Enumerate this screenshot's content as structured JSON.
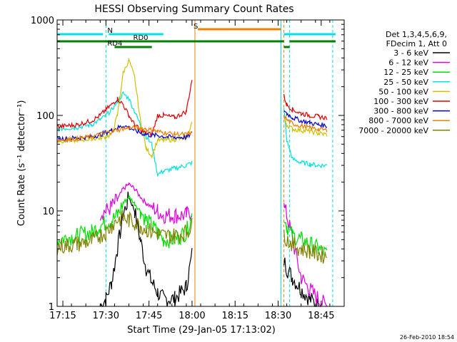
{
  "chart_data": {
    "type": "line",
    "title": "HESSI Observing Summary Count Rates",
    "xlabel": "Start Time (29-Jan-05 17:13:02)",
    "ylabel": "Count Rate (s⁻¹ detector⁻¹)",
    "yscale": "log",
    "ylim": [
      1,
      1000
    ],
    "xlim": [
      "17:13",
      "18:53"
    ],
    "x_ticks": [
      "17:15",
      "17:30",
      "17:45",
      "18:00",
      "18:15",
      "18:30",
      "18:45"
    ],
    "y_ticks": [
      "1",
      "10",
      "100",
      "1000"
    ],
    "footer_date": "26-Feb-2010 18:54",
    "legend": {
      "placement": "right",
      "header": [
        "Det 1,3,4,5,6,9,",
        "FDecim 1, Att 0"
      ],
      "entries": [
        {
          "label": "3 - 6 keV",
          "color": "#000000"
        },
        {
          "label": "6 - 12 keV",
          "color": "#e000e0"
        },
        {
          "label": "12 - 25 keV",
          "color": "#00e000"
        },
        {
          "label": "25 - 50 keV",
          "color": "#00e0e0"
        },
        {
          "label": "50 - 100 keV",
          "color": "#d0c000"
        },
        {
          "label": "100 - 300 keV",
          "color": "#e00000"
        },
        {
          "label": "300 - 800 keV",
          "color": "#0000d0"
        },
        {
          "label": "800 - 7000 keV",
          "color": "#f08000"
        },
        {
          "label": "7000 - 20000 keV",
          "color": "#808000"
        }
      ]
    },
    "flags": [
      {
        "label": "N",
        "color": "#00e0e0",
        "segments": [
          [
            "17:13",
            "17:29"
          ],
          [
            "17:31",
            "17:50"
          ],
          [
            "18:32",
            "18:50"
          ]
        ]
      },
      {
        "label": "S",
        "color": "#f08000",
        "segments": [
          [
            "18:02",
            "18:31"
          ]
        ]
      },
      {
        "label": "RD0",
        "color": "#008000",
        "segments": [
          [
            "17:13",
            "18:32"
          ],
          [
            "18:34",
            "18:50"
          ]
        ]
      },
      {
        "label": "RD4",
        "color": "#008000",
        "segments": [
          [
            "17:33",
            "17:46"
          ],
          [
            "18:32",
            "18:34"
          ]
        ]
      }
    ],
    "markers": [
      {
        "time": "17:13",
        "color": "#00e0e0",
        "style": "solid"
      },
      {
        "time": "17:30",
        "color": "#00e0e0",
        "style": "dashed"
      },
      {
        "time": "18:01",
        "color": "#f08000",
        "style": "solid"
      },
      {
        "time": "18:31",
        "color": "#00e0e0",
        "style": "solid"
      },
      {
        "time": "18:32",
        "color": "#f08000",
        "style": "dashed"
      },
      {
        "time": "18:34",
        "color": "#00e0e0",
        "style": "dashed"
      },
      {
        "time": "18:49",
        "color": "#00e0e0",
        "style": "dashed"
      }
    ],
    "series": [
      {
        "name": "3 - 6 keV",
        "x": [
          "17:13",
          "17:20",
          "17:25",
          "17:28",
          "17:30",
          "17:32",
          "17:34",
          "17:36",
          "17:38",
          "17:40",
          "17:42",
          "17:44",
          "17:46",
          "17:48",
          "17:50",
          "17:54",
          "17:58",
          "18:00",
          "18:01",
          "18:32",
          "18:33",
          "18:35",
          "18:38",
          "18:41",
          "18:44",
          "18:47",
          "18:49"
        ],
        "y": [
          null,
          null,
          null,
          1,
          1.2,
          1.8,
          4,
          9,
          14,
          10,
          5,
          2.5,
          1.8,
          1.4,
          1.2,
          1.2,
          1.6,
          3.5,
          null,
          3,
          2.5,
          2,
          1.5,
          1.2,
          1,
          null,
          null
        ]
      },
      {
        "name": "6 - 12 keV",
        "x": [
          "17:13",
          "17:20",
          "17:25",
          "17:28",
          "17:30",
          "17:32",
          "17:34",
          "17:36",
          "17:38",
          "17:40",
          "17:42",
          "17:44",
          "17:46",
          "17:48",
          "17:50",
          "17:54",
          "17:58",
          "18:00",
          "18:01",
          "18:32",
          "18:33",
          "18:35",
          "18:38",
          "18:41",
          "18:44",
          "18:47",
          "18:49"
        ],
        "y": [
          null,
          null,
          null,
          9.5,
          10,
          11,
          13,
          17,
          19,
          17,
          14,
          12,
          11,
          10,
          9,
          9,
          9,
          10,
          null,
          11,
          9,
          5,
          2,
          1.5,
          1.2,
          1,
          null
        ]
      },
      {
        "name": "12 - 25 keV",
        "x": [
          "17:13",
          "17:20",
          "17:25",
          "17:28",
          "17:30",
          "17:32",
          "17:34",
          "17:36",
          "17:38",
          "17:40",
          "17:42",
          "17:44",
          "17:46",
          "17:48",
          "17:50",
          "17:54",
          "17:58",
          "18:00",
          "18:01",
          "18:32",
          "18:33",
          "18:35",
          "18:38",
          "18:41",
          "18:44",
          "18:47",
          "18:49"
        ],
        "y": [
          5,
          5.5,
          6,
          7,
          7.5,
          8,
          9,
          12,
          14,
          12,
          10,
          8,
          7,
          6,
          5,
          5,
          6,
          9,
          null,
          9,
          7,
          5.5,
          5,
          4.5,
          4,
          3.5,
          null
        ]
      },
      {
        "name": "25 - 50 keV",
        "x": [
          "17:13",
          "17:20",
          "17:25",
          "17:28",
          "17:30",
          "17:32",
          "17:34",
          "17:36",
          "17:38",
          "17:40",
          "17:42",
          "17:44",
          "17:46",
          "17:48",
          "17:50",
          "17:54",
          "17:58",
          "18:00",
          "18:01",
          "18:32",
          "18:33",
          "18:35",
          "18:38",
          "18:41",
          "18:44",
          "18:47",
          "18:49"
        ],
        "y": [
          72,
          75,
          80,
          90,
          100,
          115,
          140,
          170,
          150,
          110,
          80,
          60,
          50,
          24,
          26,
          28,
          30,
          32,
          null,
          120,
          55,
          35,
          32,
          31,
          30,
          30,
          null
        ]
      },
      {
        "name": "50 - 100 keV",
        "x": [
          "17:13",
          "17:20",
          "17:25",
          "17:28",
          "17:30",
          "17:32",
          "17:34",
          "17:36",
          "17:38",
          "17:40",
          "17:42",
          "17:44",
          "17:46",
          "17:48",
          "17:50",
          "17:54",
          "17:58",
          "18:00",
          "18:01",
          "18:32",
          "18:33",
          "18:35",
          "18:38",
          "18:41",
          "18:44",
          "18:47",
          "18:49"
        ],
        "y": [
          54,
          55,
          57,
          58,
          60,
          63,
          100,
          280,
          380,
          250,
          90,
          45,
          38,
          55,
          55,
          56,
          58,
          85,
          null,
          95,
          80,
          72,
          70,
          68,
          65,
          63,
          null
        ]
      },
      {
        "name": "100 - 300 keV",
        "x": [
          "17:13",
          "17:20",
          "17:25",
          "17:28",
          "17:30",
          "17:32",
          "17:34",
          "17:36",
          "17:38",
          "17:40",
          "17:42",
          "17:44",
          "17:46",
          "17:48",
          "17:50",
          "17:54",
          "17:58",
          "18:00",
          "18:01",
          "18:32",
          "18:33",
          "18:35",
          "18:38",
          "18:41",
          "18:44",
          "18:47",
          "18:49"
        ],
        "y": [
          76,
          80,
          88,
          100,
          115,
          130,
          150,
          130,
          100,
          80,
          70,
          65,
          63,
          100,
          100,
          95,
          110,
          240,
          null,
          160,
          130,
          115,
          105,
          100,
          97,
          94,
          null
        ]
      },
      {
        "name": "300 - 800 keV",
        "x": [
          "17:13",
          "17:20",
          "17:25",
          "17:28",
          "17:30",
          "17:32",
          "17:34",
          "17:36",
          "17:38",
          "17:40",
          "17:42",
          "17:44",
          "17:46",
          "17:48",
          "17:50",
          "17:54",
          "17:58",
          "18:00",
          "18:01",
          "18:32",
          "18:33",
          "18:35",
          "18:38",
          "18:41",
          "18:44",
          "18:47",
          "18:49"
        ],
        "y": [
          57,
          58,
          60,
          63,
          66,
          70,
          74,
          78,
          75,
          70,
          66,
          63,
          62,
          62,
          60,
          59,
          59,
          65,
          null,
          115,
          105,
          95,
          88,
          84,
          80,
          78,
          null
        ]
      },
      {
        "name": "800 - 7000 keV",
        "x": [
          "17:13",
          "17:20",
          "17:25",
          "17:28",
          "17:30",
          "17:32",
          "17:34",
          "17:36",
          "17:38",
          "17:40",
          "17:42",
          "17:44",
          "17:46",
          "17:48",
          "17:50",
          "17:54",
          "17:58",
          "18:00",
          "18:01",
          "18:32",
          "18:33",
          "18:35",
          "18:38",
          "18:41",
          "18:44",
          "18:47",
          "18:49"
        ],
        "y": [
          55,
          57,
          60,
          63,
          66,
          68,
          70,
          72,
          74,
          74,
          74,
          72,
          70,
          68,
          66,
          64,
          63,
          65,
          null,
          100,
          90,
          82,
          78,
          74,
          72,
          70,
          null
        ]
      },
      {
        "name": "7000 - 20000 keV",
        "x": [
          "17:13",
          "17:20",
          "17:25",
          "17:28",
          "17:30",
          "17:32",
          "17:34",
          "17:36",
          "17:38",
          "17:40",
          "17:42",
          "17:44",
          "17:46",
          "17:48",
          "17:50",
          "17:54",
          "17:58",
          "18:00",
          "18:01",
          "18:32",
          "18:33",
          "18:35",
          "18:38",
          "18:41",
          "18:44",
          "18:47",
          "18:49"
        ],
        "y": [
          4.2,
          4.5,
          4.8,
          5.5,
          6,
          7,
          8,
          8.5,
          8,
          7.5,
          7,
          6.5,
          6,
          5.8,
          5.5,
          5.5,
          6,
          7,
          null,
          6,
          5,
          4.5,
          4,
          3.8,
          3.5,
          3.4,
          null
        ]
      }
    ]
  }
}
